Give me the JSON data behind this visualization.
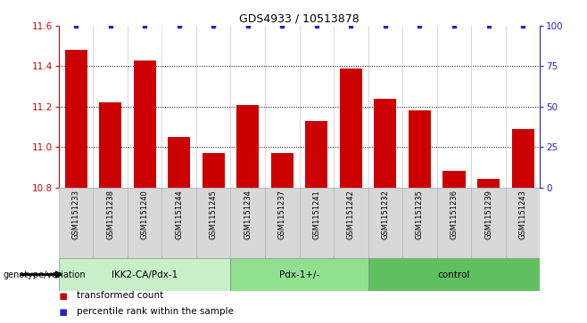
{
  "title": "GDS4933 / 10513878",
  "samples": [
    "GSM1151233",
    "GSM1151238",
    "GSM1151240",
    "GSM1151244",
    "GSM1151245",
    "GSM1151234",
    "GSM1151237",
    "GSM1151241",
    "GSM1151242",
    "GSM1151232",
    "GSM1151235",
    "GSM1151236",
    "GSM1151239",
    "GSM1151243"
  ],
  "red_values": [
    11.48,
    11.22,
    11.43,
    11.05,
    10.97,
    11.21,
    10.97,
    11.13,
    11.39,
    11.24,
    11.18,
    10.88,
    10.84,
    11.09
  ],
  "blue_values": [
    100,
    100,
    100,
    100,
    100,
    100,
    100,
    100,
    100,
    100,
    100,
    100,
    100,
    100
  ],
  "groups": [
    {
      "label": "IKK2-CA/Pdx-1",
      "start": 0,
      "end": 5,
      "color": "#c8f0c8"
    },
    {
      "label": "Pdx-1+/-",
      "start": 5,
      "end": 9,
      "color": "#90e090"
    },
    {
      "label": "control",
      "start": 9,
      "end": 14,
      "color": "#60c060"
    }
  ],
  "ylim_left": [
    10.8,
    11.6
  ],
  "ylim_right": [
    0,
    100
  ],
  "yticks_left": [
    10.8,
    11.0,
    11.2,
    11.4,
    11.6
  ],
  "yticks_right": [
    0,
    25,
    50,
    75,
    100
  ],
  "bar_color": "#cc0000",
  "dot_color": "#2222cc",
  "legend_red": "transformed count",
  "legend_blue": "percentile rank within the sample",
  "xlabel_left": "genotype/variation"
}
